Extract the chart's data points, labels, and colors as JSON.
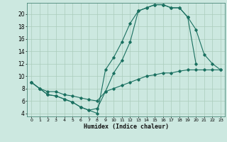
{
  "xlabel": "Humidex (Indice chaleur)",
  "background_color": "#cce8e0",
  "grid_color": "#aaccbb",
  "line_color": "#1a7060",
  "xlim": [
    -0.5,
    23.5
  ],
  "ylim": [
    3.5,
    21.8
  ],
  "yticks": [
    4,
    6,
    8,
    10,
    12,
    14,
    16,
    18,
    20
  ],
  "xticks": [
    0,
    1,
    2,
    3,
    4,
    5,
    6,
    7,
    8,
    9,
    10,
    11,
    12,
    13,
    14,
    15,
    16,
    17,
    18,
    19,
    20,
    21,
    22,
    23
  ],
  "line1_x": [
    0,
    1,
    2,
    3,
    4,
    5,
    6,
    7,
    8,
    9,
    10,
    11,
    12,
    13,
    14,
    15,
    16,
    17,
    18,
    19,
    20
  ],
  "line1_y": [
    9,
    8,
    7,
    6.8,
    6.3,
    5.8,
    5.0,
    4.5,
    4.0,
    11,
    13,
    15.5,
    18.5,
    20.5,
    21,
    21.5,
    21.5,
    21,
    21,
    19.5,
    12
  ],
  "line2_x": [
    0,
    1,
    2,
    3,
    4,
    5,
    6,
    7,
    8,
    9,
    10,
    11,
    12,
    13,
    14,
    15,
    16,
    17,
    18,
    19,
    20,
    21,
    22,
    23
  ],
  "line2_y": [
    9,
    8,
    7,
    6.8,
    6.3,
    5.8,
    5.0,
    4.5,
    4.8,
    7.5,
    10.5,
    12.5,
    15.5,
    20.5,
    21,
    21.5,
    21.5,
    21,
    21,
    19.5,
    17.5,
    13.5,
    12,
    11
  ],
  "line3_x": [
    0,
    1,
    2,
    3,
    4,
    5,
    6,
    7,
    8,
    9,
    10,
    11,
    12,
    13,
    14,
    15,
    16,
    17,
    18,
    19,
    20,
    21,
    22,
    23
  ],
  "line3_y": [
    9,
    8,
    7.5,
    7.5,
    7.0,
    6.8,
    6.5,
    6.2,
    6.0,
    7.5,
    8.0,
    8.5,
    9.0,
    9.5,
    10.0,
    10.2,
    10.5,
    10.5,
    10.8,
    11.0,
    11.0,
    11.0,
    11.0,
    11.0
  ]
}
